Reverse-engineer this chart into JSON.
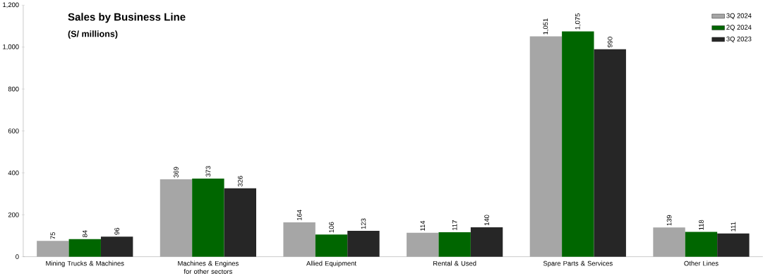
{
  "chart_data": {
    "type": "bar",
    "title": "Sales by Business Line",
    "subtitle": "(S/ millions)",
    "categories": [
      "Mining Trucks & Machines",
      "Machines & Engines for other sectors",
      "Allied Equipment",
      "Rental & Used",
      "Spare Parts & Services",
      "Other Lines"
    ],
    "series": [
      {
        "name": "3Q 2024",
        "color": "#a6a6a6",
        "values": [
          75,
          369,
          164,
          114,
          1051,
          139
        ],
        "value_labels": [
          "75",
          "369",
          "164",
          "114",
          "1,051",
          "139"
        ]
      },
      {
        "name": "2Q 2024",
        "color": "#006600",
        "values": [
          84,
          373,
          106,
          117,
          1075,
          118
        ],
        "value_labels": [
          "84",
          "373",
          "106",
          "117",
          "1,075",
          "118"
        ]
      },
      {
        "name": "3Q 2023",
        "color": "#262626",
        "values": [
          96,
          326,
          123,
          140,
          990,
          111
        ],
        "value_labels": [
          "96",
          "326",
          "123",
          "140",
          "990",
          "111"
        ]
      }
    ],
    "ylim": [
      0,
      1200
    ],
    "yticks": [
      0,
      200,
      400,
      600,
      800,
      {
        "value": 1000,
        "label": "1,000"
      },
      {
        "value": 1200,
        "label": "1,200"
      }
    ],
    "legend": "top right",
    "grid": false
  }
}
